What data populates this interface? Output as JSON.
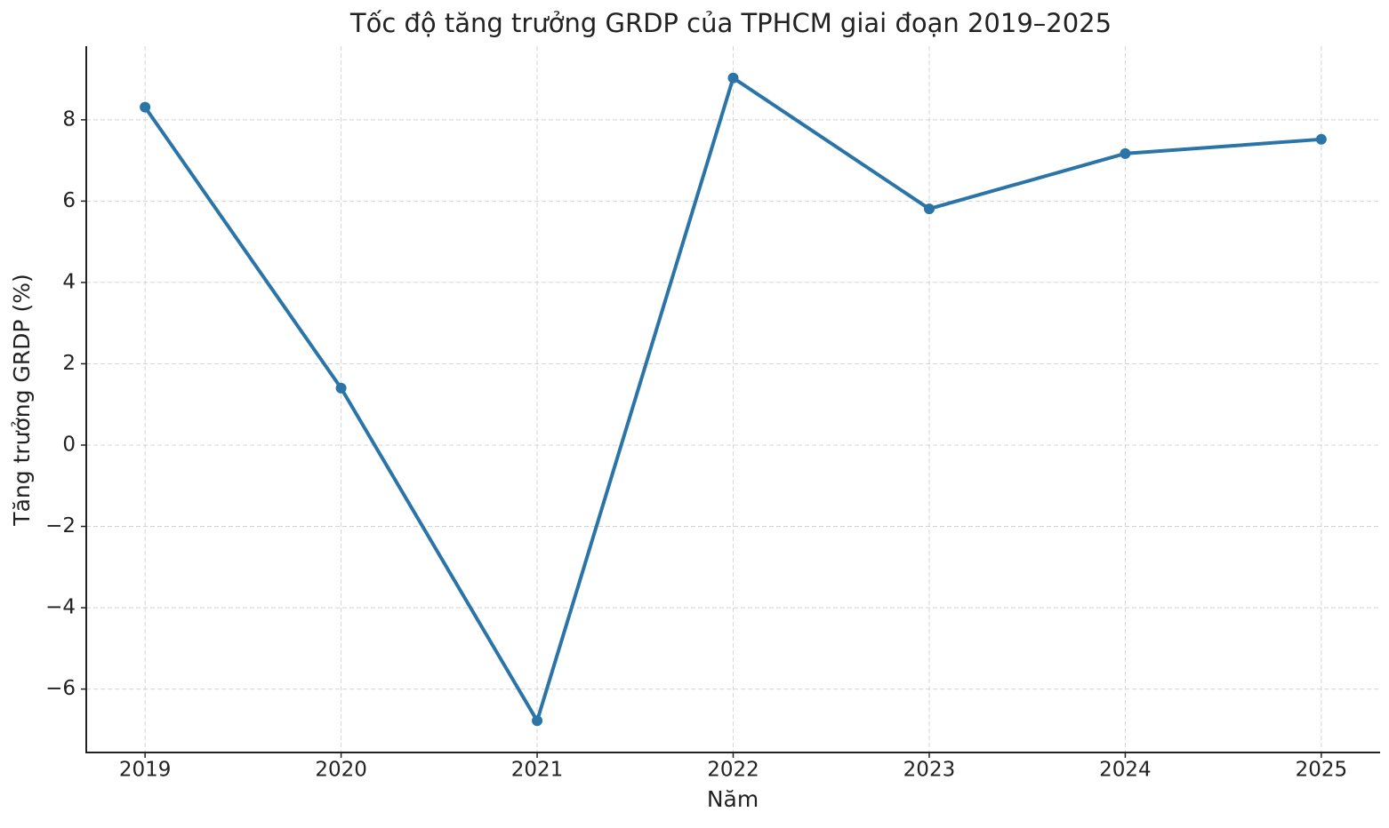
{
  "chart_data": {
    "type": "line",
    "title": "Tốc độ tăng trưởng GRDP của TPHCM giai đoạn 2019–2025",
    "x_label": "Năm",
    "y_label": "Tăng trưởng GRDP (%)",
    "x": [
      2019,
      2020,
      2021,
      2022,
      2023,
      2024,
      2025
    ],
    "series": [
      {
        "color": "#2a74a8",
        "values": [
          8.31,
          1.4,
          -6.78,
          9.03,
          5.81,
          7.17,
          7.52
        ]
      }
    ],
    "xlim": [
      2018.7,
      2025.3
    ],
    "xticks": [
      2019,
      2020,
      2021,
      2022,
      2023,
      2024,
      2025
    ],
    "ylim": [
      -7.56,
      9.81
    ],
    "yticks": [
      {
        "value": -6,
        "label": "−6"
      },
      {
        "value": -4,
        "label": "−4"
      },
      {
        "value": -2,
        "label": "−2"
      },
      0,
      2,
      4,
      6,
      8
    ],
    "grid": true
  }
}
